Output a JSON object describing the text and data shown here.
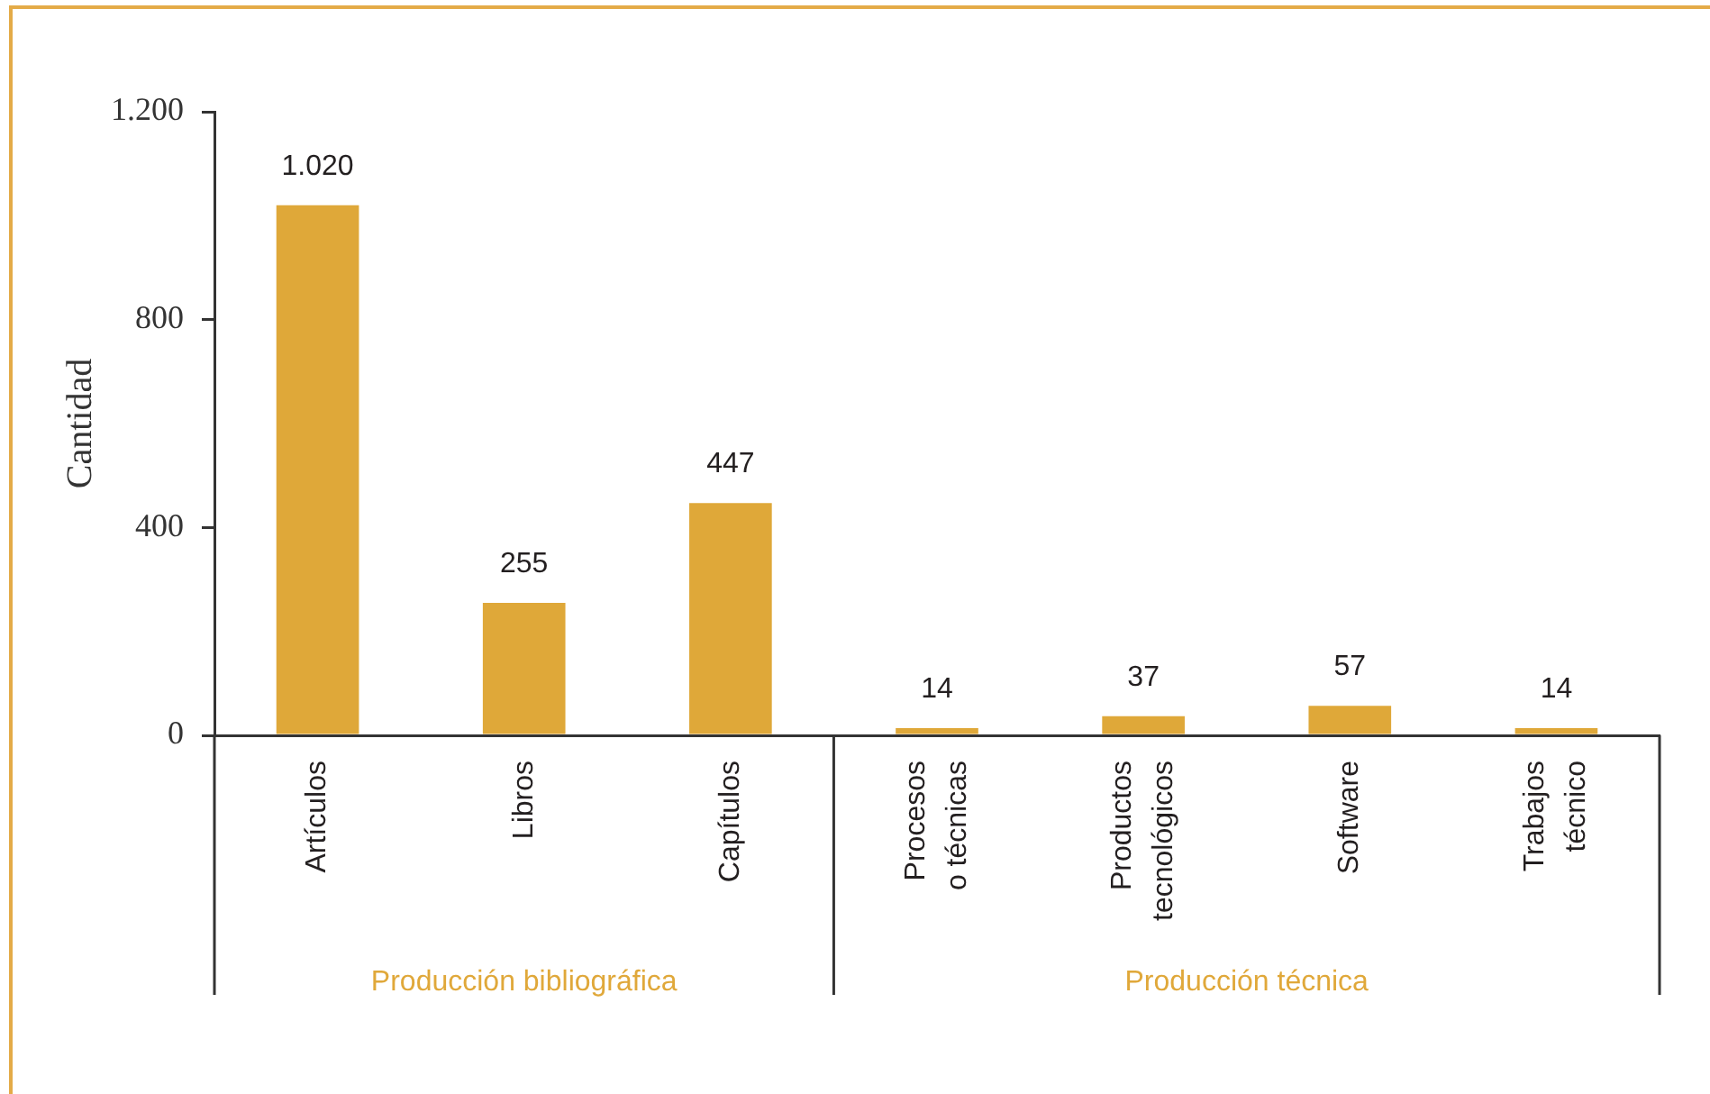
{
  "chart_data": {
    "type": "bar",
    "ylabel": "Cantidad",
    "categories": [
      "Artículos",
      "Libros",
      "Capítulos",
      "Procesos o técnicas",
      "Productos tecnológicos",
      "Software",
      "Trabajos técnico"
    ],
    "values": [
      1020,
      255,
      447,
      14,
      37,
      57,
      14
    ],
    "value_labels": [
      "1.020",
      "255",
      "447",
      "14",
      "37",
      "57",
      "14"
    ],
    "color": "#dfa839",
    "ylim": [
      0,
      1200
    ],
    "yticks": [
      0,
      400,
      800,
      {
        "value": 1200,
        "label": "1.200"
      }
    ],
    "annotations": [
      "Producción bibliográfica",
      "Producción técnica"
    ]
  }
}
